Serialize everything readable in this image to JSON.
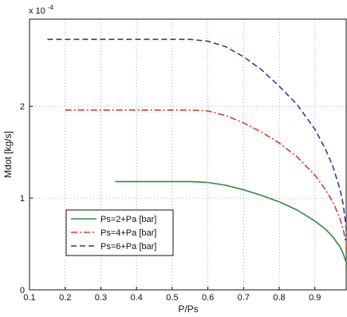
{
  "chart_data": {
    "type": "line",
    "title": "",
    "xlabel": "P/Ps",
    "ylabel": "Mdot [kg/s]",
    "y_exponent_label": "x 10",
    "y_exponent_power": "-4",
    "xlim": [
      0.1,
      0.99
    ],
    "ylim": [
      0,
      2.95
    ],
    "x_ticks": [
      0.1,
      0.2,
      0.3,
      0.4,
      0.5,
      0.6,
      0.7,
      0.8,
      0.9
    ],
    "x_tick_labels": [
      "0.1",
      "0.2",
      "0.3",
      "0.4",
      "0.5",
      "0.6",
      "0.7",
      "0.8",
      "0.9"
    ],
    "y_ticks": [
      0,
      1,
      2
    ],
    "y_tick_labels": [
      "0",
      "1",
      "2"
    ],
    "grid": true,
    "legend_position": "bottom-left",
    "series": [
      {
        "name": "Ps=2+Pa [bar]",
        "color": "#2e8b3e",
        "dash": "solid",
        "x": [
          0.34,
          0.4,
          0.45,
          0.5,
          0.55,
          0.6,
          0.65,
          0.7,
          0.75,
          0.8,
          0.85,
          0.9,
          0.93,
          0.95,
          0.97,
          0.98,
          0.99
        ],
        "y": [
          1.18,
          1.18,
          1.18,
          1.18,
          1.18,
          1.17,
          1.14,
          1.09,
          1.03,
          0.96,
          0.87,
          0.75,
          0.66,
          0.58,
          0.47,
          0.39,
          0.27
        ]
      },
      {
        "name": "Ps=4+Pa [bar]",
        "color": "#d0412b",
        "dash": "dashdot",
        "x": [
          0.2,
          0.3,
          0.4,
          0.5,
          0.55,
          0.6,
          0.65,
          0.7,
          0.75,
          0.8,
          0.85,
          0.9,
          0.93,
          0.95,
          0.97,
          0.98,
          0.99
        ],
        "y": [
          1.96,
          1.96,
          1.96,
          1.96,
          1.96,
          1.95,
          1.9,
          1.82,
          1.72,
          1.6,
          1.45,
          1.25,
          1.09,
          0.96,
          0.78,
          0.65,
          0.45
        ]
      },
      {
        "name": "Ps=6+Pa [bar]",
        "color": "#2a3f97",
        "dash": "dashed",
        "x": [
          0.15,
          0.3,
          0.4,
          0.5,
          0.55,
          0.6,
          0.65,
          0.7,
          0.75,
          0.8,
          0.85,
          0.9,
          0.93,
          0.95,
          0.97,
          0.98,
          0.99
        ],
        "y": [
          2.73,
          2.73,
          2.73,
          2.73,
          2.73,
          2.71,
          2.65,
          2.54,
          2.4,
          2.22,
          2.02,
          1.75,
          1.53,
          1.35,
          1.1,
          0.92,
          0.6
        ]
      }
    ]
  }
}
